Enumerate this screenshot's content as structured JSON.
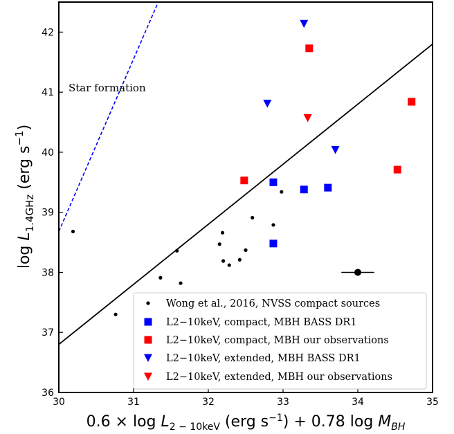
{
  "chart_data": {
    "type": "scatter",
    "xlim": [
      30,
      35
    ],
    "ylim": [
      36,
      42.5
    ],
    "x_ticks": [
      "30",
      "31",
      "32",
      "33",
      "34",
      "35"
    ],
    "y_ticks": [
      "36",
      "37",
      "38",
      "39",
      "40",
      "41",
      "42"
    ],
    "xlabel": "0.6 × log L2−10keV (erg s⁻¹) + 0.78 log MBH",
    "ylabel": "log L1.4GHz (erg s⁻¹)",
    "grid": false,
    "legend_position": "lower-right",
    "annotation": "Star formation",
    "lines": [
      {
        "id": "fit",
        "style": "solid",
        "color": "#000000",
        "x": [
          30,
          35
        ],
        "y": [
          36.8,
          41.8
        ]
      },
      {
        "id": "star-formation",
        "style": "dashed",
        "color": "#0000ff",
        "x": [
          30,
          31.33
        ],
        "y": [
          38.68,
          42.5
        ]
      }
    ],
    "error_point": {
      "x": 34.0,
      "y": 38.0,
      "xerr": 0.22
    },
    "series": [
      {
        "name": "Wong et al., 2016, NVSS compact sources",
        "marker": "dot",
        "color": "#000000",
        "x": [
          30.19,
          30.76,
          31.36,
          31.58,
          31.63,
          32.15,
          32.19,
          32.2,
          32.28,
          32.42,
          32.5,
          32.59,
          32.87,
          32.98
        ],
        "y": [
          38.68,
          37.3,
          37.91,
          38.36,
          37.82,
          38.47,
          38.66,
          38.19,
          38.12,
          38.21,
          38.37,
          38.91,
          38.79,
          39.34
        ]
      },
      {
        "name": "L2−10keV, compact, MBH BASS DR1",
        "marker": "square",
        "color": "#0000ff",
        "x": [
          32.87,
          32.87,
          33.28,
          33.6
        ],
        "y": [
          39.5,
          38.48,
          39.38,
          39.41
        ]
      },
      {
        "name": "L2−10keV, compact, MBH our observations",
        "marker": "square",
        "color": "#ff0000",
        "x": [
          32.48,
          33.35,
          34.53,
          34.72
        ],
        "y": [
          39.53,
          41.73,
          39.71,
          40.84
        ]
      },
      {
        "name": "L2−10keV, extended, MBH BASS DR1",
        "marker": "triangle-down",
        "color": "#0000ff",
        "x": [
          32.79,
          33.28,
          33.7
        ],
        "y": [
          40.81,
          42.14,
          40.04
        ]
      },
      {
        "name": "L2−10keV, extended, MBH our observations",
        "marker": "triangle-down",
        "color": "#ff0000",
        "x": [
          33.33
        ],
        "y": [
          40.57
        ]
      }
    ]
  }
}
